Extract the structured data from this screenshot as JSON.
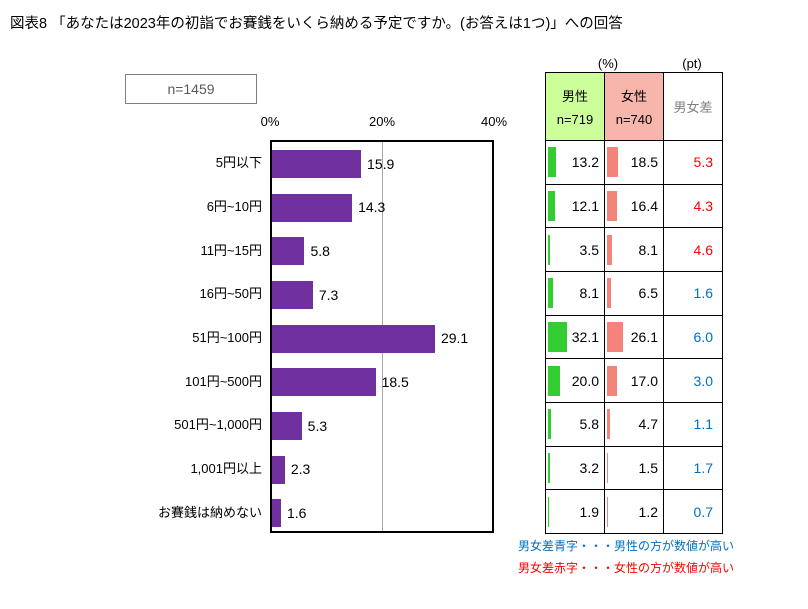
{
  "page": {
    "title": "図表8 「あなたは2023年の初詣でお賽銭をいくら納める予定ですか。(お答えは1つ)」への回答",
    "sample_label": "n=1459"
  },
  "table": {
    "pct_unit": "(%)",
    "pt_unit": "(pt)",
    "male_header": "男性",
    "male_n": "n=719",
    "female_header": "女性",
    "female_n": "n=740",
    "diff_header": "男女差"
  },
  "notes": {
    "blue": "男女差青字・・・男性の方が数値が高い",
    "red": "男女差赤字・・・女性の方が数値が高い"
  },
  "colors": {
    "bar_purple": "#7030A0",
    "male_header_bg": "#CCFF99",
    "female_header_bg": "#F8B5AB",
    "male_bar": "#33CC33",
    "female_bar": "#F4837C",
    "diff_blue": "#0070C0",
    "diff_red": "#FF0000",
    "gridline": "#A6A6A6",
    "muted_text": "#595959"
  },
  "chart_data": {
    "type": "bar",
    "orientation": "horizontal",
    "title": "あなたは2023年の初詣でお賽銭をいくら納める予定ですか。(お答えは1つ)",
    "categories": [
      "5円以下",
      "6円~10円",
      "11円~15円",
      "16円~50円",
      "51円~100円",
      "101円~500円",
      "501円~1,000円",
      "1,001円以上",
      "お賽銭は納めない"
    ],
    "x_ticks": [
      "0%",
      "20%",
      "40%"
    ],
    "xlim": [
      0,
      40
    ],
    "grid": true,
    "series": [
      {
        "name": "n=1459",
        "values": [
          15.9,
          14.3,
          5.8,
          7.3,
          29.1,
          18.5,
          5.3,
          2.3,
          1.6
        ]
      },
      {
        "name": "男性",
        "n_label": "n=719",
        "values": [
          13.2,
          12.1,
          3.5,
          8.1,
          32.1,
          20.0,
          5.8,
          3.2,
          1.9
        ]
      },
      {
        "name": "女性",
        "n_label": "n=740",
        "values": [
          18.5,
          16.4,
          8.1,
          6.5,
          26.1,
          17.0,
          4.7,
          1.5,
          1.2
        ]
      }
    ],
    "gender_diff_pt": [
      5.3,
      4.3,
      4.6,
      1.6,
      6.0,
      3.0,
      1.1,
      1.7,
      0.7
    ],
    "diff_higher": [
      "female",
      "female",
      "female",
      "male",
      "male",
      "male",
      "male",
      "male",
      "male"
    ]
  }
}
